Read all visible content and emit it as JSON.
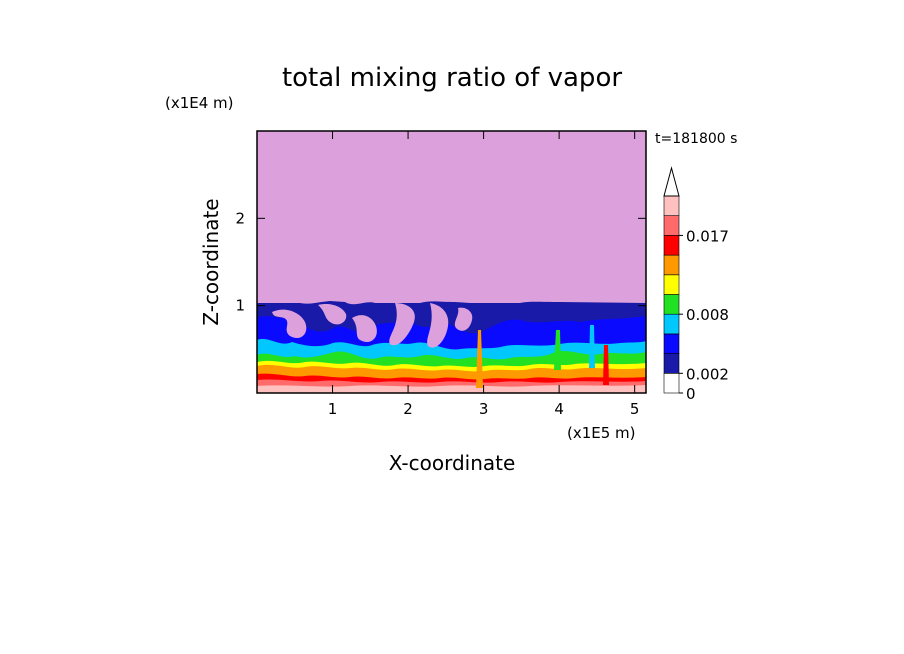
{
  "chart_data": {
    "type": "heatmap",
    "title": "total mixing ratio of vapor",
    "xlabel": "X-coordinate",
    "ylabel": "Z-coordinate",
    "x_unit": "(x1E5 m)",
    "y_unit": "(x1E4 m)",
    "time_label": "t=181800 s",
    "xlim": [
      0,
      5.15
    ],
    "ylim": [
      0,
      3.0
    ],
    "x_ticks": [
      1,
      2,
      3,
      4,
      5
    ],
    "y_ticks": [
      1,
      2
    ],
    "colorbar": {
      "extend": "max",
      "tick_labels": [
        "0",
        "0.002",
        "0.008",
        "0.017"
      ],
      "level_colors": [
        "#ffffff",
        "#1a1aa8",
        "#0a0aff",
        "#00c8ff",
        "#22e022",
        "#ffff00",
        "#ff9900",
        "#ff0000",
        "#ff6a6a",
        "#ffc0c0"
      ]
    },
    "upper_layer_color": "#dca0dc",
    "grid": false,
    "legend": "colorbar-right"
  }
}
